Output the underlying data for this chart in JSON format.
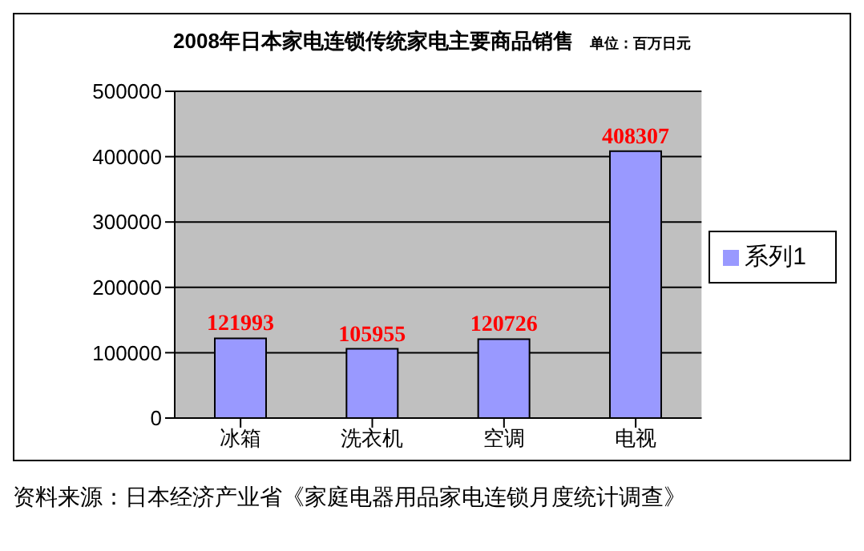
{
  "chart_data": {
    "type": "bar",
    "title": "2008年日本家电连锁传统家电主要商品销售",
    "subtitle": "单位：百万日元",
    "categories": [
      "冰箱",
      "洗衣机",
      "空调",
      "电视"
    ],
    "series": [
      {
        "name": "系列1",
        "color": "#9999ff",
        "values": [
          121993,
          105955,
          120726,
          408307
        ]
      }
    ],
    "ylim": [
      0,
      500000
    ],
    "yticks": [
      0,
      100000,
      200000,
      300000,
      400000,
      500000
    ],
    "grid": "y",
    "legend": "right",
    "data_labels": true,
    "annotations": [
      "资料来源：日本经济产业省《家庭电器用品家电连锁月度统计调查》"
    ]
  }
}
